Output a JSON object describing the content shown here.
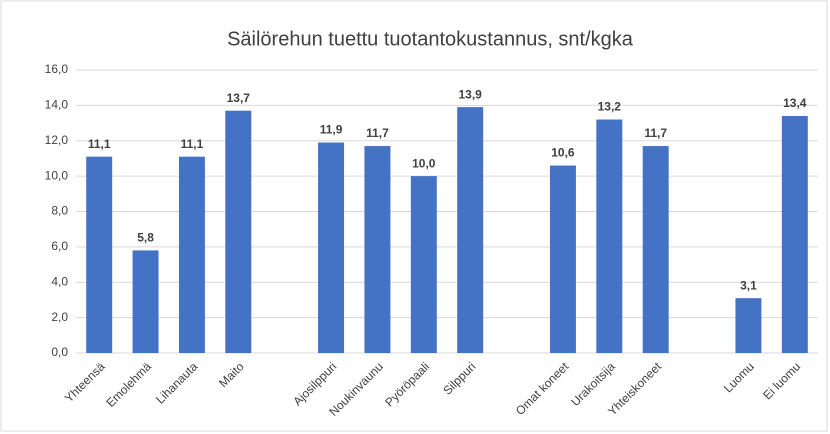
{
  "chart_data": {
    "type": "bar",
    "title": "Säilörehun tuettu tuotantokustannus, snt/kgka",
    "categories": [
      "Yhteensä",
      "Emolehmä",
      "Lihanauta",
      "Maito",
      null,
      "Ajosilppuri",
      "Noukinvaunu",
      "Pyöröpaali",
      "Silppuri",
      null,
      "Omat koneet",
      "Urakoitsija",
      "Yhteiskoneet",
      null,
      "Luomu",
      "Ei luomu"
    ],
    "values": [
      11.1,
      5.8,
      11.1,
      13.7,
      null,
      11.9,
      11.7,
      10.0,
      13.9,
      null,
      10.6,
      13.2,
      11.7,
      null,
      3.1,
      13.4
    ],
    "value_labels": [
      "11,1",
      "5,8",
      "11,1",
      "13,7",
      null,
      "11,9",
      "11,7",
      "10,0",
      "13,9",
      null,
      "10,6",
      "13,2",
      "11,7",
      null,
      "3,1",
      "13,4"
    ],
    "color": "#4472c4",
    "ylim": [
      0,
      16
    ],
    "yticks": [
      {
        "value": 0,
        "label": "0,0"
      },
      {
        "value": 2,
        "label": "2,0"
      },
      {
        "value": 4,
        "label": "4,0"
      },
      {
        "value": 6,
        "label": "6,0"
      },
      {
        "value": 8,
        "label": "8,0"
      },
      {
        "value": 10,
        "label": "10,0"
      },
      {
        "value": 12,
        "label": "12,0"
      },
      {
        "value": 14,
        "label": "14,0"
      },
      {
        "value": 16,
        "label": "16,0"
      }
    ],
    "grid": true
  }
}
